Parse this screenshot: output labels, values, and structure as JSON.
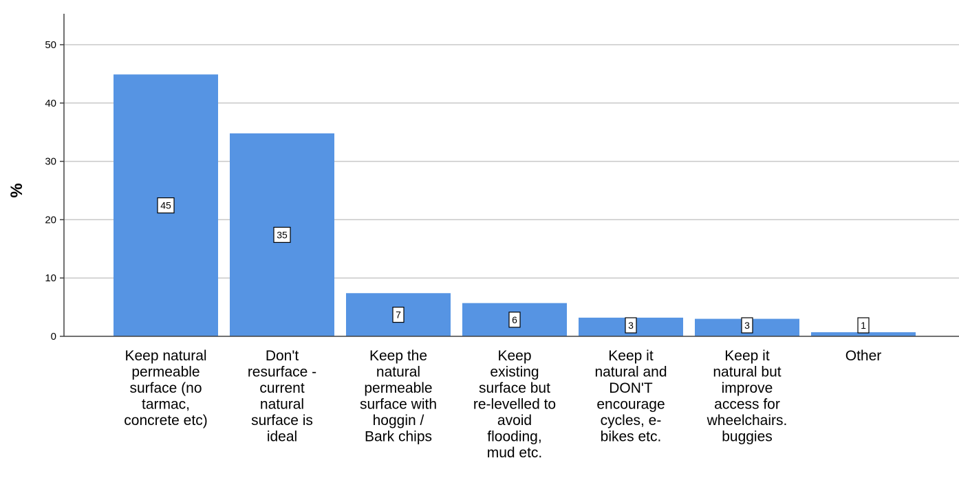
{
  "chart_data": {
    "type": "bar",
    "title": "",
    "xlabel": "",
    "ylabel": "%",
    "ylim": [
      0,
      55
    ],
    "yticks": [
      0,
      10,
      20,
      30,
      40,
      50
    ],
    "grid": true,
    "legend": "none",
    "categories": [
      [
        "Keep natural",
        "permeable",
        "surface (no",
        "tarmac,",
        "concrete etc)"
      ],
      [
        "Don't",
        "resurface -",
        "current",
        "natural",
        "surface is",
        "ideal"
      ],
      [
        "Keep the",
        "natural",
        "permeable",
        "surface with",
        "hoggin  /",
        "Bark chips"
      ],
      [
        "Keep",
        "existing",
        "surface but",
        "re-levelled to",
        "avoid",
        "flooding,",
        "mud etc."
      ],
      [
        "Keep it",
        "natural and",
        "DON'T",
        "encourage",
        "cycles, e-",
        "bikes etc."
      ],
      [
        "Keep it",
        "natural but",
        "improve",
        "access for",
        "wheelchairs.",
        "buggies"
      ],
      [
        "Other"
      ]
    ],
    "values": [
      44.9,
      34.8,
      7.4,
      5.7,
      3.2,
      3.0,
      0.7
    ],
    "data_labels": [
      "45",
      "35",
      "7",
      "6",
      "3",
      "3",
      "1"
    ],
    "bar_color": "#5694e3",
    "grid_color": "#c8c8c8",
    "axis_color": "#404040"
  }
}
